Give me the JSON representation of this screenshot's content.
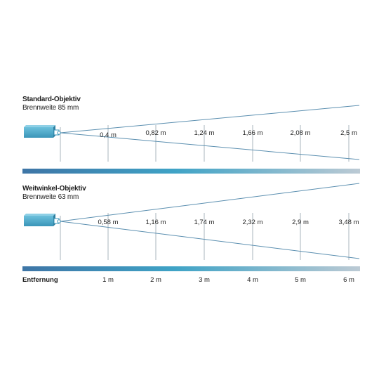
{
  "colors": {
    "beam_line": "#5b8fb0",
    "marker_line": "#a8b4bc",
    "projector_body": "#4aa8c9",
    "bar_start": "#3e75a6",
    "bar_mid": "#3fa3c6",
    "bar_end": "#bccad4"
  },
  "diagrams": [
    {
      "title": "Standard-Objektiv",
      "subtitle": "Brennweite 85 mm",
      "widths": [
        "0,4 m",
        "0,82 m",
        "1,24 m",
        "1,66 m",
        "2,08 m",
        "2,5 m"
      ]
    },
    {
      "title": "Weitwinkel-Objektiv",
      "subtitle": "Brennweite 63 mm",
      "widths": [
        "0,58 m",
        "1,16 m",
        "1,74 m",
        "2,32 m",
        "2,9 m",
        "3,48 m"
      ]
    }
  ],
  "axis": {
    "label": "Entfernung",
    "ticks": [
      "1 m",
      "2 m",
      "3 m",
      "4 m",
      "5 m",
      "6 m"
    ]
  }
}
